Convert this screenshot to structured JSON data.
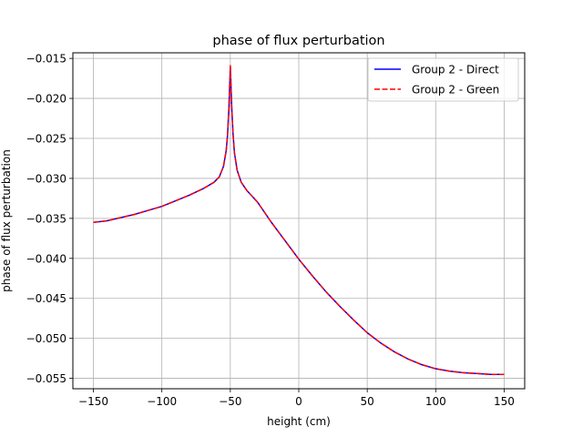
{
  "chart_data": {
    "type": "line",
    "title": "phase of flux perturbation",
    "xlabel": "height (cm)",
    "ylabel": "phase of flux perturbation",
    "xlim": [
      -165,
      165
    ],
    "ylim": [
      -0.0563,
      -0.0143
    ],
    "xticks": [
      -150,
      -100,
      -50,
      0,
      50,
      100,
      150
    ],
    "xtick_labels": [
      "−150",
      "−100",
      "−50",
      "0",
      "50",
      "100",
      "150"
    ],
    "yticks": [
      -0.055,
      -0.05,
      -0.045,
      -0.04,
      -0.035,
      -0.03,
      -0.025,
      -0.02,
      -0.015
    ],
    "ytick_labels": [
      "−0.055",
      "−0.050",
      "−0.045",
      "−0.040",
      "−0.035",
      "−0.030",
      "−0.025",
      "−0.020",
      "−0.015"
    ],
    "grid": true,
    "legend_position": "top-right",
    "series": [
      {
        "name": "Group 2 - Direct",
        "color": "#0000ff",
        "style": "solid",
        "x": [
          -150,
          -140,
          -130,
          -120,
          -110,
          -100,
          -90,
          -80,
          -70,
          -62,
          -58,
          -55,
          -53,
          -52,
          -51,
          -50.5,
          -50,
          -49.5,
          -49,
          -48,
          -47,
          -45,
          -42,
          -38,
          -30,
          -20,
          -10,
          0,
          10,
          20,
          30,
          40,
          50,
          60,
          70,
          80,
          90,
          100,
          110,
          120,
          130,
          140,
          150
        ],
        "y": [
          -0.0355,
          -0.0353,
          -0.0349,
          -0.0345,
          -0.034,
          -0.0335,
          -0.0328,
          -0.0321,
          -0.0313,
          -0.0305,
          -0.0298,
          -0.0285,
          -0.0265,
          -0.0245,
          -0.021,
          -0.0185,
          -0.0161,
          -0.0185,
          -0.021,
          -0.0245,
          -0.0268,
          -0.029,
          -0.0305,
          -0.0315,
          -0.033,
          -0.0355,
          -0.0378,
          -0.0401,
          -0.0422,
          -0.0442,
          -0.046,
          -0.0477,
          -0.0493,
          -0.0506,
          -0.0517,
          -0.0526,
          -0.0533,
          -0.0538,
          -0.0541,
          -0.0543,
          -0.0544,
          -0.0545,
          -0.0545
        ]
      },
      {
        "name": "Group 2 - Green",
        "color": "#ff0000",
        "style": "dashed",
        "x": [
          -150,
          -140,
          -130,
          -120,
          -110,
          -100,
          -90,
          -80,
          -70,
          -62,
          -58,
          -55,
          -53,
          -52,
          -51,
          -50.5,
          -50,
          -49.5,
          -49,
          -48,
          -47,
          -45,
          -42,
          -38,
          -30,
          -20,
          -10,
          0,
          10,
          20,
          30,
          40,
          50,
          60,
          70,
          80,
          90,
          100,
          110,
          120,
          130,
          140,
          150
        ],
        "y": [
          -0.0355,
          -0.0353,
          -0.0349,
          -0.0345,
          -0.034,
          -0.0335,
          -0.0328,
          -0.0321,
          -0.0313,
          -0.0305,
          -0.0298,
          -0.0285,
          -0.0265,
          -0.0245,
          -0.021,
          -0.0185,
          -0.0159,
          -0.0185,
          -0.021,
          -0.0245,
          -0.0268,
          -0.029,
          -0.0305,
          -0.0315,
          -0.033,
          -0.0355,
          -0.0378,
          -0.0401,
          -0.0422,
          -0.0442,
          -0.046,
          -0.0477,
          -0.0493,
          -0.0506,
          -0.0517,
          -0.0526,
          -0.0533,
          -0.0538,
          -0.0541,
          -0.0543,
          -0.0544,
          -0.0545,
          -0.0545
        ]
      }
    ]
  }
}
